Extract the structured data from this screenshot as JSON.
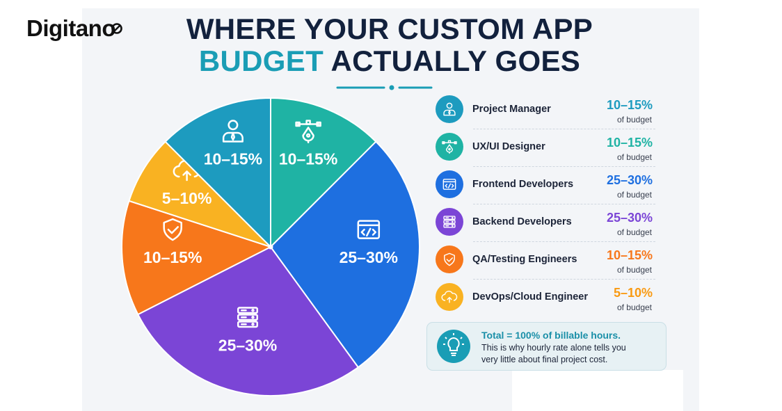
{
  "brand": {
    "name": "Digitano"
  },
  "title": {
    "line1": "WHERE YOUR CUSTOM APP",
    "line2_accent": "BUDGET",
    "line2_rest": " ACTUALLY GOES"
  },
  "colors": {
    "navy": "#12213d",
    "accent": "#1a9db5",
    "project_manager": "#1d9bbf",
    "ux_ui": "#1fb3a4",
    "frontend": "#1e6fe0",
    "backend": "#7b45d6",
    "qa": "#f7771b",
    "devops": "#f9b222"
  },
  "chart_data": {
    "type": "pie",
    "title": "WHERE YOUR CUSTOM APP BUDGET ACTUALLY GOES",
    "slices": [
      {
        "name": "UX/UI Designer",
        "label": "10–15%",
        "value": 12.5,
        "range": [
          10,
          15
        ],
        "color": "#1fb3a4",
        "icon": "pen-tool-icon"
      },
      {
        "name": "Frontend Developers",
        "label": "25–30%",
        "value": 27.5,
        "range": [
          25,
          30
        ],
        "color": "#1e6fe0",
        "icon": "code-window-icon"
      },
      {
        "name": "Backend Developers",
        "label": "25–30%",
        "value": 27.5,
        "range": [
          25,
          30
        ],
        "color": "#7b45d6",
        "icon": "server-stack-icon"
      },
      {
        "name": "QA/Testing Engineers",
        "label": "10–15%",
        "value": 12.5,
        "range": [
          10,
          15
        ],
        "color": "#f7771b",
        "icon": "shield-check-icon"
      },
      {
        "name": "DevOps/Cloud Engineer",
        "label": "5–10%",
        "value": 7.5,
        "range": [
          5,
          10
        ],
        "color": "#f9b222",
        "icon": "cloud-upload-icon"
      },
      {
        "name": "Project Manager",
        "label": "10–15%",
        "value": 12.5,
        "range": [
          10,
          15
        ],
        "color": "#1d9bbf",
        "icon": "person-tie-icon"
      }
    ]
  },
  "legend": {
    "unit": "of budget",
    "items": [
      {
        "label": "Project Manager",
        "value": "10–15%",
        "color": "#1d9bbf",
        "text_color": "#1d9bbf",
        "icon": "person-tie-icon"
      },
      {
        "label": "UX/UI Designer",
        "value": "10–15%",
        "color": "#1fb3a4",
        "text_color": "#1fb3a4",
        "icon": "pen-tool-icon"
      },
      {
        "label": "Frontend Developers",
        "value": "25–30%",
        "color": "#1e6fe0",
        "text_color": "#1e6fe0",
        "icon": "code-window-icon"
      },
      {
        "label": "Backend Developers",
        "value": "25–30%",
        "color": "#7b45d6",
        "text_color": "#7b45d6",
        "icon": "server-stack-icon"
      },
      {
        "label": "QA/Testing Engineers",
        "value": "10–15%",
        "color": "#f7771b",
        "text_color": "#f7771b",
        "icon": "shield-check-icon"
      },
      {
        "label": "DevOps/Cloud Engineer",
        "value": "5–10%",
        "color": "#f9b222",
        "text_color": "#f99a12",
        "icon": "cloud-upload-icon"
      }
    ]
  },
  "total": {
    "heading": "Total = 100% of billable hours.",
    "body_line1": "This is why hourly rate alone tells you",
    "body_line2": "very little about final project cost.",
    "icon": "lightbulb-icon"
  }
}
